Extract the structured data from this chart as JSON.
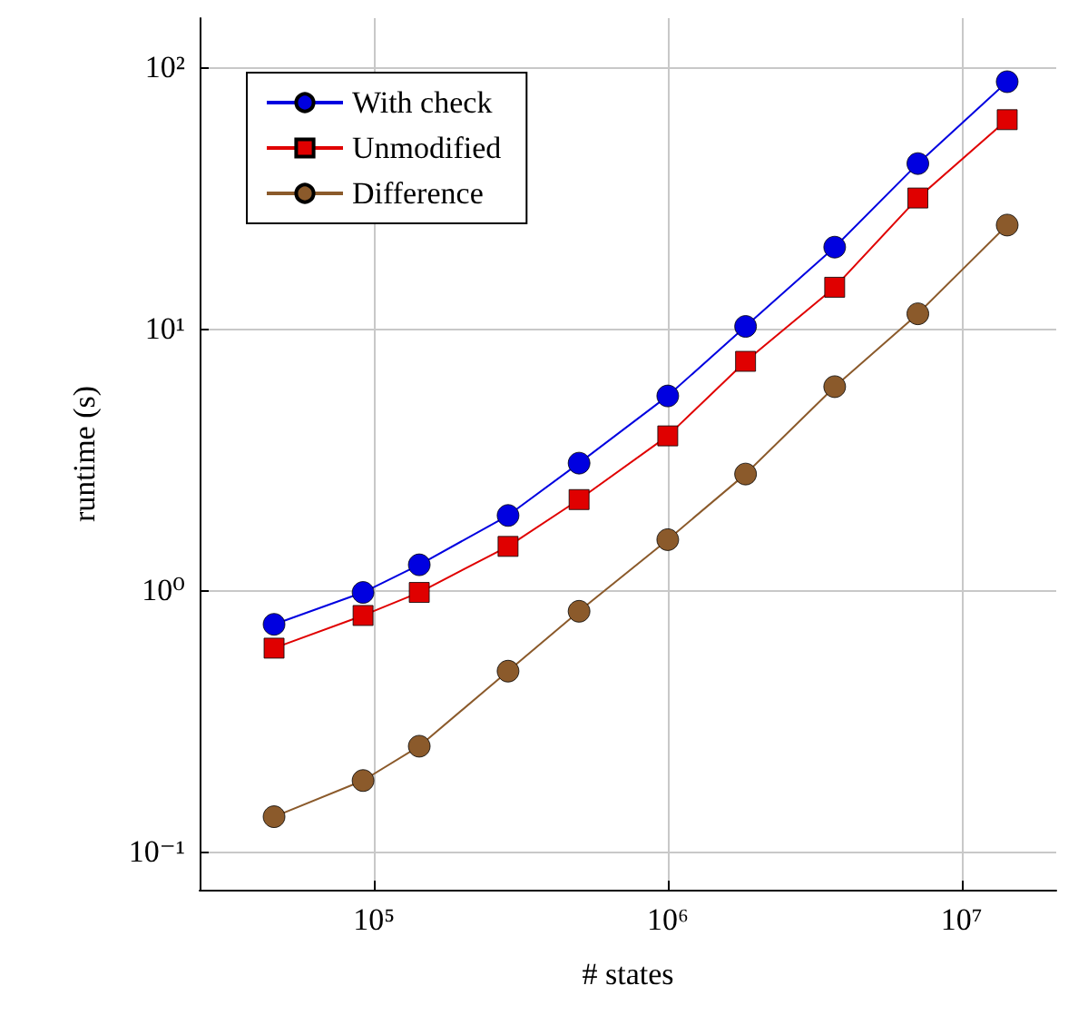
{
  "chart_data": {
    "type": "line",
    "xlabel": "# states",
    "ylabel": "runtime (s)",
    "x": [
      45700,
      91800,
      142600,
      286000,
      499000,
      1000000,
      1840000,
      3700000,
      7100000,
      14300000
    ],
    "series": [
      {
        "name": "With check",
        "color": "#0000e0",
        "marker": "circle",
        "values": [
          0.74,
          0.98,
          1.25,
          1.93,
          3.06,
          5.53,
          10.2,
          20.5,
          42.8,
          88
        ]
      },
      {
        "name": "Unmodified",
        "color": "#e00000",
        "marker": "square",
        "values": [
          0.6,
          0.8,
          0.98,
          1.47,
          2.22,
          3.89,
          7.5,
          14.4,
          31.6,
          63
        ]
      },
      {
        "name": "Difference",
        "color": "#8b5a2b",
        "marker": "circle",
        "values": [
          0.136,
          0.187,
          0.253,
          0.49,
          0.83,
          1.56,
          2.78,
          6.0,
          11.4,
          24.9
        ]
      }
    ],
    "log": "xy",
    "grid": true,
    "legend": "top left",
    "xlim": [
      25500,
      21000000
    ],
    "ylim": [
      0.0715,
      154
    ],
    "xticks": [
      {
        "value": 100000,
        "label": "10⁵"
      },
      {
        "value": 1000000,
        "label": "10⁶"
      },
      {
        "value": 10000000,
        "label": "10⁷"
      }
    ],
    "yticks": [
      {
        "value": 0.1,
        "label": "10⁻¹"
      },
      {
        "value": 1,
        "label": "10⁰"
      },
      {
        "value": 10,
        "label": "10¹"
      },
      {
        "value": 100,
        "label": "10²"
      }
    ]
  }
}
